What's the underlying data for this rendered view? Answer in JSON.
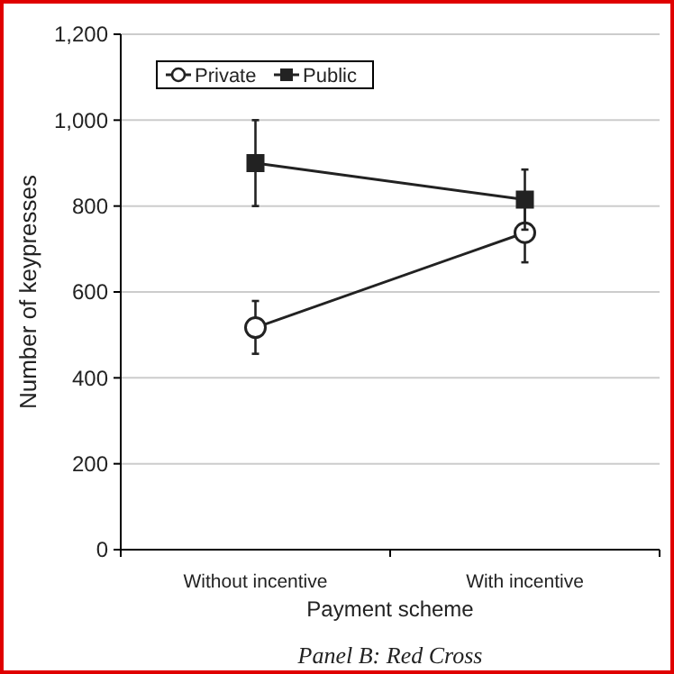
{
  "chart_data": {
    "type": "line",
    "title": "Panel B: Red Cross",
    "xlabel": "Payment scheme",
    "ylabel": "Number of keypresses",
    "categories": [
      "Without incentive",
      "With incentive"
    ],
    "series": [
      {
        "name": "Private",
        "color": "#222222",
        "values": [
          517,
          738
        ],
        "errors": [
          [
            456,
            579
          ],
          [
            669,
            807
          ]
        ],
        "marker": "circle"
      },
      {
        "name": "Public",
        "color": "#222222",
        "values": [
          900,
          815
        ],
        "errors": [
          [
            800,
            1000
          ],
          [
            745,
            885
          ]
        ],
        "marker": "square"
      }
    ],
    "ylim": [
      0,
      1200
    ],
    "yticks": [
      0,
      {
        "value": 200,
        "label": "200"
      },
      {
        "value": 400,
        "label": "400"
      },
      {
        "value": 600,
        "label": "600"
      },
      {
        "value": 800,
        "label": "800"
      },
      {
        "value": 1000,
        "label": "1,000"
      },
      {
        "value": 1200,
        "label": "1,200"
      }
    ],
    "grid": "y",
    "legend": "top left",
    "line_style": "solid"
  }
}
